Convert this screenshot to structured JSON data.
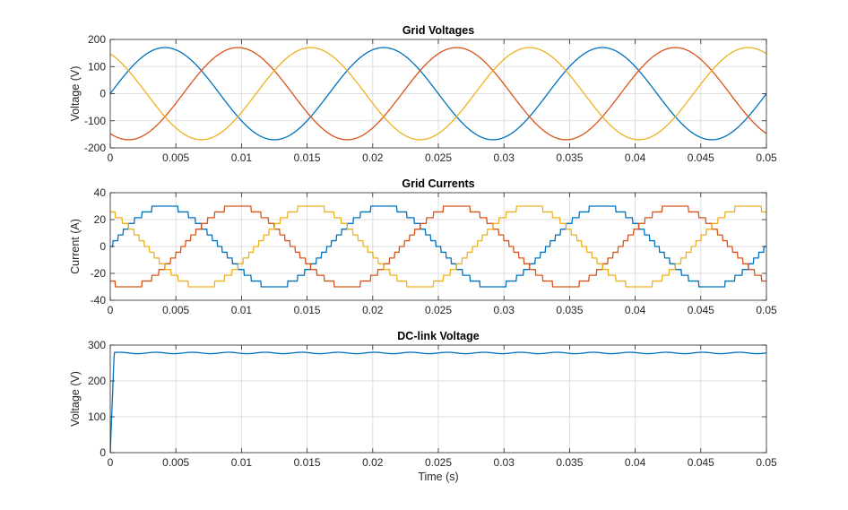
{
  "chart_data": [
    {
      "type": "line",
      "title": "Grid Voltages",
      "xlabel": "",
      "ylabel": "Voltage (V)",
      "xlim": [
        0,
        0.05
      ],
      "ylim": [
        -200,
        200
      ],
      "x_ticks": [
        0,
        0.005,
        0.01,
        0.015,
        0.02,
        0.025,
        0.03,
        0.035,
        0.04,
        0.045,
        0.05
      ],
      "x_tick_labels": [
        "0",
        "0.005",
        "0.01",
        "0.015",
        "0.02",
        "0.025",
        "0.03",
        "0.035",
        "0.04",
        "0.045",
        "0.05"
      ],
      "y_ticks": [
        -200,
        -100,
        0,
        100,
        200
      ],
      "y_tick_labels": [
        "-200",
        "-100",
        "0",
        "100",
        "200"
      ],
      "grid": true,
      "frequency_hz": 60,
      "series": [
        {
          "color": "#0072BD",
          "amplitude": 170,
          "phase_deg": 0
        },
        {
          "color": "#D95319",
          "amplitude": 170,
          "phase_deg": -120
        },
        {
          "color": "#EDB120",
          "amplitude": 170,
          "phase_deg": 120
        }
      ]
    },
    {
      "type": "line",
      "title": "Grid Currents",
      "xlabel": "",
      "ylabel": "Current (A)",
      "xlim": [
        0,
        0.05
      ],
      "ylim": [
        -40,
        40
      ],
      "x_ticks": [
        0,
        0.005,
        0.01,
        0.015,
        0.02,
        0.025,
        0.03,
        0.035,
        0.04,
        0.045,
        0.05
      ],
      "x_tick_labels": [
        "0",
        "0.005",
        "0.01",
        "0.015",
        "0.02",
        "0.025",
        "0.03",
        "0.035",
        "0.04",
        "0.045",
        "0.05"
      ],
      "y_ticks": [
        -40,
        -20,
        0,
        20,
        40
      ],
      "y_tick_labels": [
        "-40",
        "-20",
        "0",
        "20",
        "40"
      ],
      "grid": true,
      "frequency_hz": 60,
      "waveform": "stepped",
      "series": [
        {
          "color": "#0072BD",
          "amplitude": 30,
          "phase_deg": 0
        },
        {
          "color": "#D95319",
          "amplitude": 30,
          "phase_deg": -120
        },
        {
          "color": "#EDB120",
          "amplitude": 30,
          "phase_deg": 120
        }
      ]
    },
    {
      "type": "line",
      "title": "DC-link Voltage",
      "xlabel": "Time (s)",
      "ylabel": "Voltage (V)",
      "xlim": [
        0,
        0.05
      ],
      "ylim": [
        0,
        300
      ],
      "x_ticks": [
        0,
        0.005,
        0.01,
        0.015,
        0.02,
        0.025,
        0.03,
        0.035,
        0.04,
        0.045,
        0.05
      ],
      "x_tick_labels": [
        "0",
        "0.005",
        "0.01",
        "0.015",
        "0.02",
        "0.025",
        "0.03",
        "0.035",
        "0.04",
        "0.045",
        "0.05"
      ],
      "y_ticks": [
        0,
        100,
        200,
        300
      ],
      "y_tick_labels": [
        "0",
        "100",
        "200",
        "300"
      ],
      "grid": true,
      "series": [
        {
          "color": "#0072BD",
          "steady_value": 278,
          "ripple": 2,
          "rise_time": 0.0003
        }
      ]
    }
  ]
}
